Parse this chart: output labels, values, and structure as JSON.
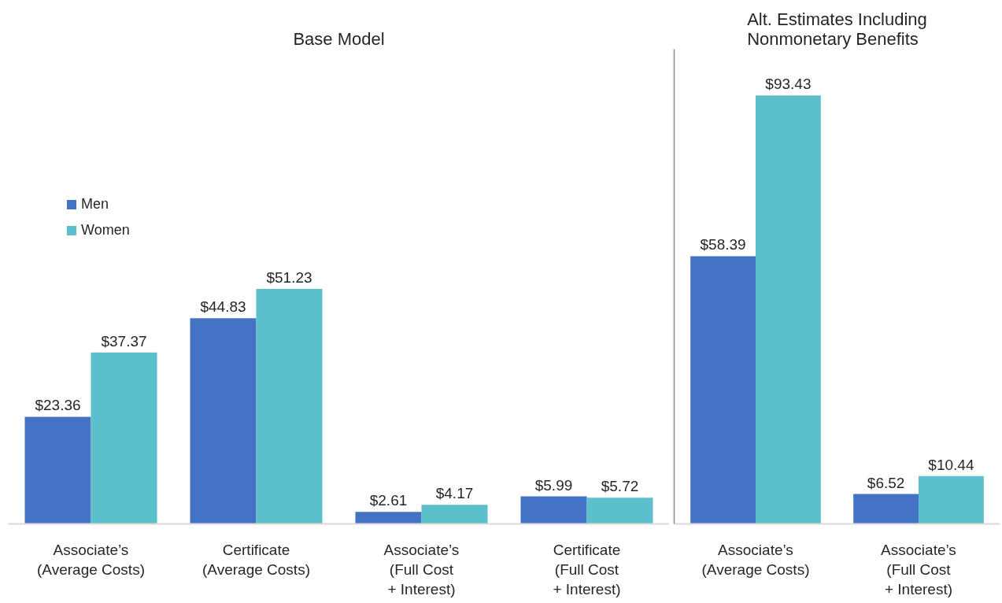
{
  "chart_data": [
    {
      "type": "bar",
      "title": "Base Model",
      "categories": [
        "Associate’s\n(Average Costs)",
        "Certificate\n(Average Costs)",
        "Associate’s\n(Full Cost\n+ Interest)",
        "Certificate\n(Full Cost\n+ Interest)"
      ],
      "series": [
        {
          "name": "Men",
          "color": "#4472c4",
          "values": [
            23.36,
            44.83,
            2.61,
            5.99
          ],
          "value_labels": [
            "$23.36",
            "$44.83",
            "$2.61",
            "$5.99"
          ]
        },
        {
          "name": "Women",
          "color": "#5bc0cb",
          "values": [
            37.37,
            51.23,
            4.17,
            5.72
          ],
          "value_labels": [
            "$37.37",
            "$51.23",
            "$4.17",
            "$5.72"
          ]
        }
      ],
      "legend": "top left",
      "tick_labels": "x"
    },
    {
      "type": "bar",
      "title": "Alt. Estimates Including\nNonmonetary Benefits",
      "categories": [
        "Associate’s\n(Average Costs)",
        "Associate’s\n(Full Cost\n+ Interest)"
      ],
      "series": [
        {
          "color": "#4472c4",
          "values": [
            58.39,
            6.52
          ],
          "value_labels": [
            "$58.39",
            "$6.52"
          ]
        },
        {
          "color": "#5bc0cb",
          "values": [
            93.43,
            10.44
          ],
          "value_labels": [
            "$93.43",
            "$10.44"
          ]
        }
      ],
      "tick_labels": "x"
    }
  ]
}
